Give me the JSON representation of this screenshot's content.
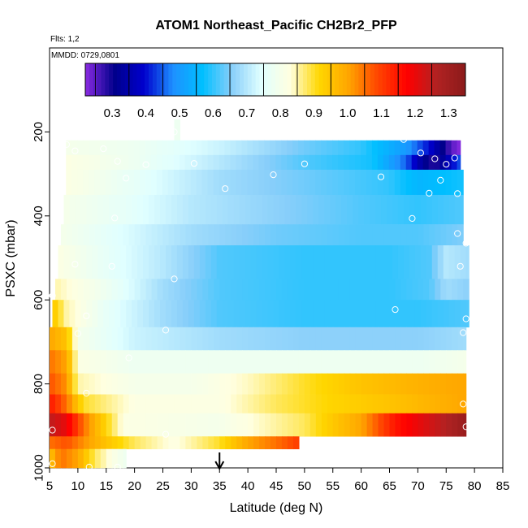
{
  "chart_data": {
    "type": "heatmap",
    "title": "ATOM1 Northeast_Pacific CH2Br2_PFP",
    "flights_label": "Flts: 1,2",
    "date_label": "MMDD: 0729,0801",
    "xlabel": "Latitude (deg N)",
    "ylabel": "PSXC (mbar)",
    "xlim": [
      5,
      85
    ],
    "ylim": [
      1000,
      0
    ],
    "x_ticks": [
      5,
      10,
      15,
      20,
      25,
      30,
      35,
      40,
      45,
      50,
      55,
      60,
      65,
      70,
      75,
      80,
      85
    ],
    "y_ticks": [
      200,
      400,
      600,
      800,
      1000
    ],
    "colorbar": {
      "range": [
        0.22,
        1.35
      ],
      "ticks": [
        0.3,
        0.4,
        0.5,
        0.6,
        0.7,
        0.8,
        0.9,
        1.0,
        1.1,
        1.2,
        1.3
      ],
      "tick_labels": [
        "0.3",
        "0.4",
        "0.5",
        "0.6",
        "0.7",
        "0.8",
        "0.9",
        "1.0",
        "1.1",
        "1.2",
        "1.3"
      ],
      "colors": [
        "#8a2be2",
        "#00008b",
        "#0000cd",
        "#1e90ff",
        "#00bfff",
        "#87cefa",
        "#e0ffff",
        "#ffffe0",
        "#ffd700",
        "#ffa500",
        "#ff4500",
        "#ff0000",
        "#b22222",
        "#8b1a1a"
      ]
    },
    "marker": {
      "x": 35,
      "label": "arrow"
    },
    "bands": [
      {
        "p": [
          170,
          220
        ],
        "x0": 27,
        "x1": 28,
        "profile": [
          [
            27,
            0.78
          ],
          [
            28,
            0.78
          ]
        ]
      },
      {
        "p": [
          220,
          255
        ],
        "x0": 7.9,
        "x1": 77.5,
        "profile": [
          [
            8,
            0.8
          ],
          [
            20,
            0.78
          ],
          [
            35,
            0.72
          ],
          [
            50,
            0.64
          ],
          [
            60,
            0.6
          ],
          [
            68,
            0.5
          ],
          [
            72,
            0.4
          ],
          [
            74,
            0.32
          ],
          [
            76,
            0.25
          ],
          [
            77.5,
            0.22
          ]
        ]
      },
      {
        "p": [
          255,
          290
        ],
        "x0": 7.9,
        "x1": 77.5,
        "profile": [
          [
            8,
            0.82
          ],
          [
            20,
            0.78
          ],
          [
            35,
            0.7
          ],
          [
            50,
            0.62
          ],
          [
            62,
            0.58
          ],
          [
            68,
            0.45
          ],
          [
            71,
            0.32
          ],
          [
            73,
            0.28
          ],
          [
            75,
            0.35
          ],
          [
            77.5,
            0.45
          ]
        ]
      },
      {
        "p": [
          290,
          350
        ],
        "x0": 7.9,
        "x1": 78,
        "profile": [
          [
            8,
            0.82
          ],
          [
            20,
            0.76
          ],
          [
            35,
            0.68
          ],
          [
            50,
            0.64
          ],
          [
            65,
            0.6
          ],
          [
            70,
            0.55
          ],
          [
            78,
            0.58
          ]
        ]
      },
      {
        "p": [
          350,
          420
        ],
        "x0": 7.5,
        "x1": 78,
        "profile": [
          [
            8,
            0.8
          ],
          [
            18,
            0.76
          ],
          [
            30,
            0.7
          ],
          [
            45,
            0.66
          ],
          [
            60,
            0.62
          ],
          [
            70,
            0.6
          ],
          [
            78,
            0.62
          ]
        ]
      },
      {
        "p": [
          420,
          470
        ],
        "x0": 7.0,
        "x1": 78,
        "profile": [
          [
            7,
            0.8
          ],
          [
            18,
            0.74
          ],
          [
            30,
            0.68
          ],
          [
            45,
            0.64
          ],
          [
            60,
            0.62
          ],
          [
            70,
            0.62
          ],
          [
            78,
            0.65
          ]
        ]
      },
      {
        "p": [
          470,
          550
        ],
        "x0": 6.5,
        "x1": 79,
        "profile": [
          [
            6.5,
            0.82
          ],
          [
            15,
            0.76
          ],
          [
            25,
            0.7
          ],
          [
            35,
            0.62
          ],
          [
            50,
            0.6
          ],
          [
            65,
            0.6
          ],
          [
            72,
            0.62
          ],
          [
            75,
            0.7
          ],
          [
            79,
            0.68
          ]
        ]
      },
      {
        "p": [
          550,
          600
        ],
        "x0": 6.0,
        "x1": 79,
        "profile": [
          [
            6,
            0.85
          ],
          [
            15,
            0.78
          ],
          [
            25,
            0.68
          ],
          [
            35,
            0.62
          ],
          [
            50,
            0.6
          ],
          [
            65,
            0.6
          ],
          [
            72,
            0.62
          ],
          [
            75,
            0.68
          ],
          [
            79,
            0.66
          ]
        ]
      },
      {
        "p": [
          600,
          665
        ],
        "x0": 5.5,
        "x1": 79,
        "profile": [
          [
            5.5,
            0.95
          ],
          [
            8,
            0.85
          ],
          [
            15,
            0.76
          ],
          [
            25,
            0.68
          ],
          [
            35,
            0.62
          ],
          [
            50,
            0.6
          ],
          [
            70,
            0.6
          ],
          [
            79,
            0.62
          ]
        ]
      },
      {
        "p": [
          665,
          720
        ],
        "x0": 5,
        "x1": 78.5,
        "profile": [
          [
            5,
            1.0
          ],
          [
            8,
            0.95
          ],
          [
            10,
            0.8
          ],
          [
            20,
            0.72
          ],
          [
            35,
            0.68
          ],
          [
            50,
            0.66
          ],
          [
            70,
            0.66
          ],
          [
            78.5,
            0.68
          ]
        ]
      },
      {
        "p": [
          720,
          775
        ],
        "x0": 5,
        "x1": 78.5,
        "profile": [
          [
            5,
            1.05
          ],
          [
            8,
            1.0
          ],
          [
            10,
            0.82
          ],
          [
            20,
            0.78
          ],
          [
            30,
            0.78
          ],
          [
            40,
            0.78
          ],
          [
            55,
            0.78
          ],
          [
            70,
            0.78
          ],
          [
            78.5,
            0.8
          ]
        ]
      },
      {
        "p": [
          775,
          825
        ],
        "x0": 5,
        "x1": 78.5,
        "profile": [
          [
            5,
            1.08
          ],
          [
            8,
            1.02
          ],
          [
            10,
            0.85
          ],
          [
            20,
            0.8
          ],
          [
            30,
            0.8
          ],
          [
            40,
            0.84
          ],
          [
            50,
            0.9
          ],
          [
            60,
            0.95
          ],
          [
            70,
            0.98
          ],
          [
            78.5,
            1.0
          ]
        ]
      },
      {
        "p": [
          825,
          870
        ],
        "x0": 5,
        "x1": 78.5,
        "profile": [
          [
            5,
            1.15
          ],
          [
            8,
            1.05
          ],
          [
            11,
            0.9
          ],
          [
            20,
            0.82
          ],
          [
            35,
            0.82
          ],
          [
            45,
            0.88
          ],
          [
            55,
            0.92
          ],
          [
            65,
            0.95
          ],
          [
            78.5,
            1.0
          ]
        ]
      },
      {
        "p": [
          870,
          925
        ],
        "x0": 5,
        "x1": 78.5,
        "profile": [
          [
            5,
            1.25
          ],
          [
            8,
            1.2
          ],
          [
            11,
            1.05
          ],
          [
            14,
            0.95
          ],
          [
            18,
            0.82
          ],
          [
            35,
            0.8
          ],
          [
            50,
            0.88
          ],
          [
            60,
            1.0
          ],
          [
            66,
            1.15
          ],
          [
            70,
            1.2
          ],
          [
            74,
            1.25
          ],
          [
            78.5,
            1.32
          ]
        ]
      },
      {
        "p": [
          925,
          955
        ],
        "x0": 5,
        "x1": 49,
        "profile": [
          [
            5,
            1.05
          ],
          [
            8,
            1.08
          ],
          [
            11,
            1.02
          ],
          [
            15,
            0.95
          ],
          [
            20,
            0.88
          ],
          [
            27,
            0.82
          ],
          [
            35,
            0.9
          ],
          [
            40,
            1.0
          ],
          [
            45,
            1.05
          ],
          [
            49,
            1.1
          ]
        ]
      },
      {
        "p": [
          955,
          1000
        ],
        "x0": 5,
        "x1": 18.5,
        "profile": [
          [
            5,
            0.95
          ],
          [
            7,
            1.05
          ],
          [
            10,
            1.0
          ],
          [
            13,
            0.88
          ],
          [
            16,
            0.82
          ],
          [
            18.5,
            0.78
          ]
        ]
      }
    ],
    "points": [
      [
        27,
        200
      ],
      [
        8,
        230
      ],
      [
        9.5,
        245
      ],
      [
        14.5,
        240
      ],
      [
        17,
        270
      ],
      [
        22,
        278
      ],
      [
        18.5,
        310
      ],
      [
        30.5,
        275
      ],
      [
        36,
        335
      ],
      [
        44.5,
        302
      ],
      [
        50,
        276
      ],
      [
        63.5,
        307
      ],
      [
        67.5,
        218
      ],
      [
        70.5,
        250
      ],
      [
        73,
        264
      ],
      [
        75,
        277
      ],
      [
        76.5,
        262
      ],
      [
        74,
        315
      ],
      [
        72,
        346
      ],
      [
        77,
        347
      ],
      [
        69,
        406
      ],
      [
        77,
        442
      ],
      [
        78.5,
        465
      ],
      [
        77.5,
        520
      ],
      [
        16.5,
        405
      ],
      [
        9.5,
        515
      ],
      [
        16,
        520
      ],
      [
        27,
        550
      ],
      [
        5.5,
        590
      ],
      [
        11.5,
        638
      ],
      [
        66,
        623
      ],
      [
        78.5,
        645
      ],
      [
        10,
        680
      ],
      [
        25.5,
        672
      ],
      [
        78,
        678
      ],
      [
        19,
        738
      ],
      [
        11.5,
        822
      ],
      [
        78,
        848
      ],
      [
        5.5,
        910
      ],
      [
        25.5,
        920
      ],
      [
        78.5,
        902
      ],
      [
        5.5,
        990
      ],
      [
        12,
        998
      ],
      [
        17,
        998
      ]
    ]
  }
}
